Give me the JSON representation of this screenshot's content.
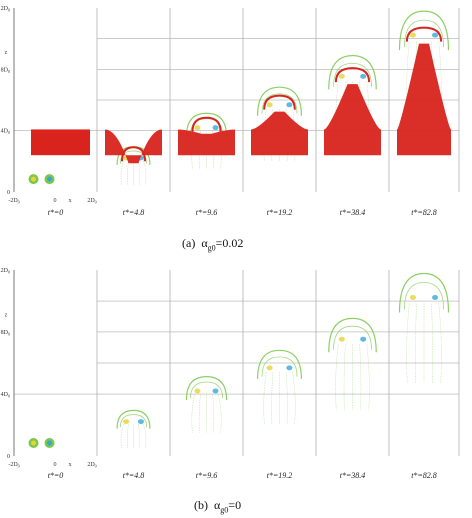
{
  "figure": {
    "panels": [
      {
        "id": "a",
        "caption_label": "(a)",
        "caption_var": "α",
        "caption_sub": "g0",
        "caption_value": "=0.02",
        "time_labels": [
          "t*=0",
          "t*=4.8",
          "t*=9.6",
          "t*=19.2",
          "t*=38.4",
          "t*=82.8"
        ],
        "y_ticks": [
          "0",
          "4D0",
          "8D0",
          "12D0"
        ],
        "y_axis_label": "z",
        "x_ticks": [
          "-2D0",
          "0",
          "x",
          "2D0"
        ],
        "stages_solid": [
          0,
          1,
          1,
          1,
          1,
          1
        ],
        "has_particles": true
      },
      {
        "id": "b",
        "caption_label": "(b)",
        "caption_var": "α",
        "caption_sub": "g0",
        "caption_value": "=0",
        "time_labels": [
          "t*=0",
          "t*=4.8",
          "t*=9.6",
          "t*=19.2",
          "t*=38.4",
          "t*=82.8"
        ],
        "y_ticks": [
          "0",
          "4D0",
          "8D0",
          "12D0"
        ],
        "y_axis_label": "z",
        "x_ticks": [
          "-2D0",
          "0",
          "x",
          "2D0"
        ],
        "stages_solid": [
          0,
          0,
          0,
          0,
          0,
          0
        ],
        "has_particles": false
      }
    ],
    "colors": {
      "particles": "#d8241c",
      "vortex_green": "#7ac84a",
      "vortex_yellow": "#e8d23a",
      "vortex_blue": "#3aa6d8",
      "grid": "#9a9a9a",
      "divider": "#b0b0b0"
    }
  }
}
